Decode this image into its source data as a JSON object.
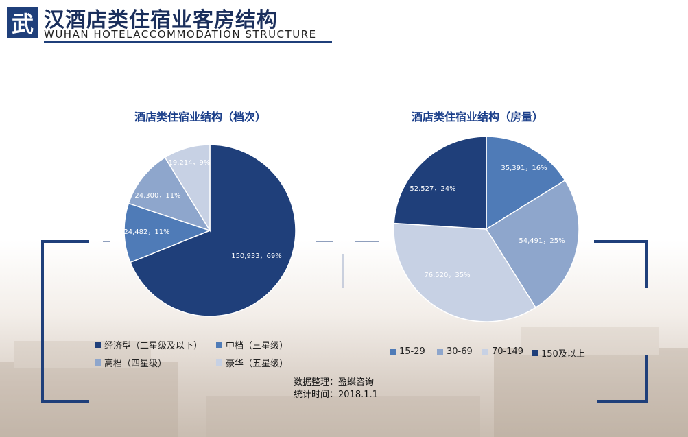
{
  "header": {
    "logo_char": "武",
    "title": "汉酒店类住宿业客房结构",
    "subtitle": "WUHAN HOTELACCOMMODATION STRUCTURE"
  },
  "colors": {
    "brand": "#1f3f7a",
    "dark_blue": "#1f3f7a",
    "mid_blue": "#4f7bb7",
    "light_blue": "#8ea6cc",
    "pale_blue": "#c7d1e4"
  },
  "chart_data": [
    {
      "type": "pie",
      "title": "酒店类住宿业结构（档次）",
      "slices": [
        {
          "name": "经济型（二星级及以下）",
          "value": 150933,
          "percent": 69,
          "label": "150,933，69%",
          "color": "#1f3f7a"
        },
        {
          "name": "中档（三星级）",
          "value": 24482,
          "percent": 11,
          "label": "24,482，11%",
          "color": "#4f7bb7"
        },
        {
          "name": "高档（四星级）",
          "value": 24300,
          "percent": 11,
          "label": "24,300，11%",
          "color": "#8ea6cc"
        },
        {
          "name": "豪华（五星级）",
          "value": 19214,
          "percent": 9,
          "label": "19,214，9%",
          "color": "#c7d1e4"
        }
      ],
      "legend_position": "bottom"
    },
    {
      "type": "pie",
      "title": "酒店类住宿业结构（房量）",
      "slices": [
        {
          "name": "15-29",
          "value": 35391,
          "percent": 16,
          "label": "35,391，16%",
          "color": "#4f7bb7"
        },
        {
          "name": "30-69",
          "value": 54491,
          "percent": 25,
          "label": "54,491，25%",
          "color": "#8ea6cc"
        },
        {
          "name": "70-149",
          "value": 76520,
          "percent": 35,
          "label": "76,520，35%",
          "color": "#c7d1e4"
        },
        {
          "name": "150及以上",
          "value": 52527,
          "percent": 24,
          "label": "52,527，24%",
          "color": "#1f3f7a"
        }
      ],
      "legend_position": "bottom"
    }
  ],
  "source": {
    "line1": "数据整理：盈蝶咨询",
    "line2": "统计时间：2018.1.1"
  }
}
